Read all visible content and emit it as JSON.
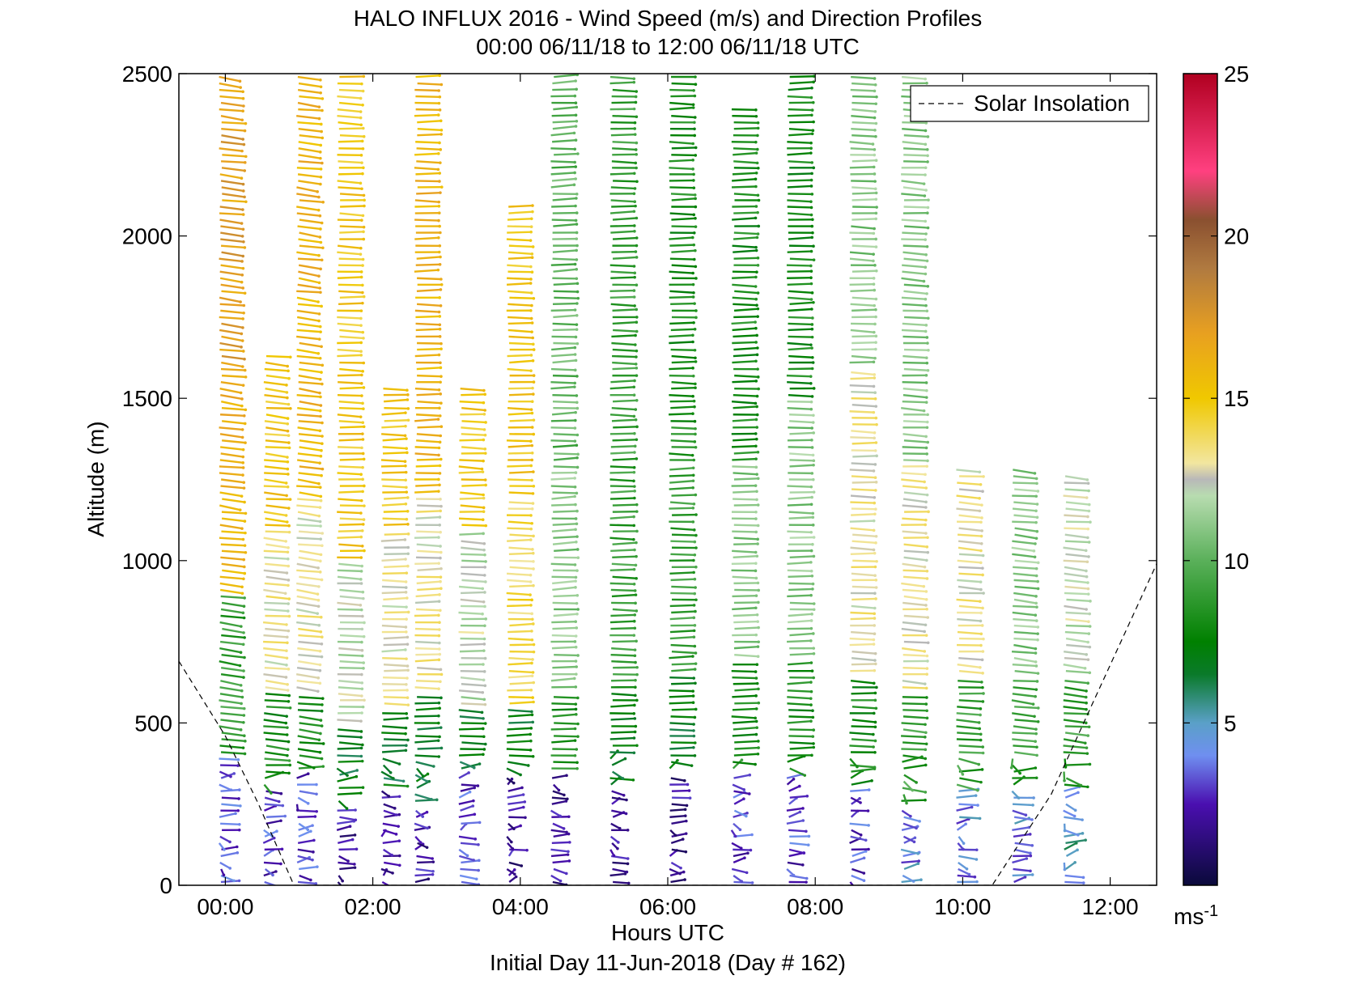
{
  "chart_data": {
    "type": "barbs",
    "title": "HALO INFLUX 2016 - Wind Speed (m/s) and Direction Profiles",
    "subtitle": "00:00 06/11/18 to 12:00 06/11/18  UTC",
    "xlabel": "Hours UTC",
    "footer": "Initial Day 11-Jun-2018 (Day # 162)",
    "ylabel": "Altitude (m)",
    "xlim": [
      -0.63,
      12.63
    ],
    "ylim": [
      0,
      2500
    ],
    "x_ticks": [
      "00:00",
      "02:00",
      "04:00",
      "06:00",
      "08:00",
      "10:00",
      "12:00"
    ],
    "x_tick_values": [
      0,
      2,
      4,
      6,
      8,
      10,
      12
    ],
    "y_ticks": [
      "0",
      "500",
      "1000",
      "1500",
      "2000",
      "2500"
    ],
    "y_tick_values": [
      0,
      500,
      1000,
      1500,
      2000,
      2500
    ],
    "colorbar": {
      "range": [
        0,
        25
      ],
      "ticks": [
        "5",
        "10",
        "15",
        "20",
        "25"
      ],
      "tick_values": [
        5,
        10,
        15,
        20,
        25
      ],
      "unit_label": "ms",
      "unit_exponent": "-1",
      "stops": [
        {
          "v": 0,
          "color": "#0a0a3a"
        },
        {
          "v": 2.5,
          "color": "#4a0fb0"
        },
        {
          "v": 4,
          "color": "#6f8ff0"
        },
        {
          "v": 5,
          "color": "#5aa0c8"
        },
        {
          "v": 6.5,
          "color": "#0a7a2a"
        },
        {
          "v": 7.5,
          "color": "#008000"
        },
        {
          "v": 10,
          "color": "#5ab05a"
        },
        {
          "v": 12,
          "color": "#b8dcb0"
        },
        {
          "v": 12.5,
          "color": "#b8b8b8"
        },
        {
          "v": 13,
          "color": "#f2e6a0"
        },
        {
          "v": 15,
          "color": "#f0c800"
        },
        {
          "v": 17,
          "color": "#e8a020"
        },
        {
          "v": 19,
          "color": "#b07a40"
        },
        {
          "v": 20.5,
          "color": "#8a5030"
        },
        {
          "v": 22,
          "color": "#ff4080"
        },
        {
          "v": 25,
          "color": "#b00020"
        }
      ]
    },
    "legend": {
      "position": "top-right",
      "entries": [
        "Solar Insolation"
      ]
    },
    "solar_insolation": [
      {
        "x": -0.63,
        "y": 690
      },
      {
        "x": 0.0,
        "y": 460
      },
      {
        "x": 0.45,
        "y": 250
      },
      {
        "x": 0.93,
        "y": 0
      },
      {
        "x": 10.4,
        "y": 0
      },
      {
        "x": 11.2,
        "y": 280
      },
      {
        "x": 11.7,
        "y": 530
      },
      {
        "x": 12.63,
        "y": 990
      }
    ],
    "profiles": [
      {
        "t": 0.0,
        "top": 2500,
        "segments": [
          {
            "to": 400,
            "speed": 3
          },
          {
            "to": 900,
            "speed": 9
          },
          {
            "to": 1600,
            "speed": 16
          },
          {
            "to": 2500,
            "speed": 17
          }
        ],
        "dir": 290
      },
      {
        "t": 0.6,
        "top": 1650,
        "segments": [
          {
            "to": 300,
            "speed": 3
          },
          {
            "to": 600,
            "speed": 8
          },
          {
            "to": 1100,
            "speed": 13
          },
          {
            "to": 1650,
            "speed": 15
          }
        ],
        "dir": 285
      },
      {
        "t": 1.05,
        "top": 2500,
        "segments": [
          {
            "to": 350,
            "speed": 3
          },
          {
            "to": 600,
            "speed": 8
          },
          {
            "to": 1200,
            "speed": 13
          },
          {
            "to": 2500,
            "speed": 16
          }
        ],
        "dir": 290
      },
      {
        "t": 1.6,
        "top": 2500,
        "segments": [
          {
            "to": 250,
            "speed": 2
          },
          {
            "to": 500,
            "speed": 7
          },
          {
            "to": 1000,
            "speed": 12
          },
          {
            "to": 2500,
            "speed": 15
          }
        ],
        "dir": 275
      },
      {
        "t": 2.2,
        "top": 1550,
        "segments": [
          {
            "to": 300,
            "speed": 2
          },
          {
            "to": 550,
            "speed": 7
          },
          {
            "to": 1100,
            "speed": 13
          },
          {
            "to": 1550,
            "speed": 15
          }
        ],
        "dir": 270
      },
      {
        "t": 2.65,
        "top": 2500,
        "segments": [
          {
            "to": 250,
            "speed": 2
          },
          {
            "to": 600,
            "speed": 7
          },
          {
            "to": 1200,
            "speed": 13
          },
          {
            "to": 2500,
            "speed": 16
          }
        ],
        "dir": 270
      },
      {
        "t": 3.25,
        "top": 1550,
        "segments": [
          {
            "to": 350,
            "speed": 3
          },
          {
            "to": 550,
            "speed": 7
          },
          {
            "to": 1100,
            "speed": 12
          },
          {
            "to": 1550,
            "speed": 15
          }
        ],
        "dir": 275
      },
      {
        "t": 3.9,
        "top": 2100,
        "segments": [
          {
            "to": 350,
            "speed": 2
          },
          {
            "to": 550,
            "speed": 7
          },
          {
            "to": 1200,
            "speed": 14
          },
          {
            "to": 2100,
            "speed": 15
          }
        ],
        "dir": 270
      },
      {
        "t": 4.5,
        "top": 2500,
        "segments": [
          {
            "to": 350,
            "speed": 2
          },
          {
            "to": 600,
            "speed": 8
          },
          {
            "to": 1300,
            "speed": 11
          },
          {
            "to": 2500,
            "speed": 10
          }
        ],
        "dir": 265
      },
      {
        "t": 5.3,
        "top": 2500,
        "segments": [
          {
            "to": 300,
            "speed": 2
          },
          {
            "to": 600,
            "speed": 7
          },
          {
            "to": 1300,
            "speed": 9
          },
          {
            "to": 2500,
            "speed": 9
          }
        ],
        "dir": 270
      },
      {
        "t": 6.1,
        "top": 2500,
        "segments": [
          {
            "to": 350,
            "speed": 2
          },
          {
            "to": 650,
            "speed": 7
          },
          {
            "to": 1300,
            "speed": 9
          },
          {
            "to": 2500,
            "speed": 8
          }
        ],
        "dir": 270
      },
      {
        "t": 6.95,
        "top": 2400,
        "segments": [
          {
            "to": 350,
            "speed": 3
          },
          {
            "to": 700,
            "speed": 8
          },
          {
            "to": 1300,
            "speed": 11
          },
          {
            "to": 2400,
            "speed": 8
          }
        ],
        "dir": 270
      },
      {
        "t": 7.7,
        "top": 2500,
        "segments": [
          {
            "to": 350,
            "speed": 3
          },
          {
            "to": 700,
            "speed": 8
          },
          {
            "to": 1500,
            "speed": 11
          },
          {
            "to": 2500,
            "speed": 8
          }
        ],
        "dir": 270
      },
      {
        "t": 8.55,
        "top": 2500,
        "segments": [
          {
            "to": 300,
            "speed": 3
          },
          {
            "to": 650,
            "speed": 8
          },
          {
            "to": 1600,
            "speed": 13
          },
          {
            "to": 2500,
            "speed": 11
          }
        ],
        "dir": 275
      },
      {
        "t": 9.25,
        "top": 2500,
        "segments": [
          {
            "to": 250,
            "speed": 4
          },
          {
            "to": 600,
            "speed": 9
          },
          {
            "to": 1300,
            "speed": 13
          },
          {
            "to": 2500,
            "speed": 11
          }
        ],
        "dir": 280
      },
      {
        "t": 10.0,
        "top": 1300,
        "segments": [
          {
            "to": 300,
            "speed": 4
          },
          {
            "to": 650,
            "speed": 9
          },
          {
            "to": 1300,
            "speed": 13
          }
        ],
        "dir": 280
      },
      {
        "t": 10.75,
        "top": 1300,
        "segments": [
          {
            "to": 300,
            "speed": 4
          },
          {
            "to": 650,
            "speed": 9
          },
          {
            "to": 1300,
            "speed": 11
          }
        ],
        "dir": 285
      },
      {
        "t": 11.45,
        "top": 1280,
        "segments": [
          {
            "to": 300,
            "speed": 5
          },
          {
            "to": 650,
            "speed": 9
          },
          {
            "to": 1280,
            "speed": 12
          }
        ],
        "dir": 285
      }
    ]
  }
}
